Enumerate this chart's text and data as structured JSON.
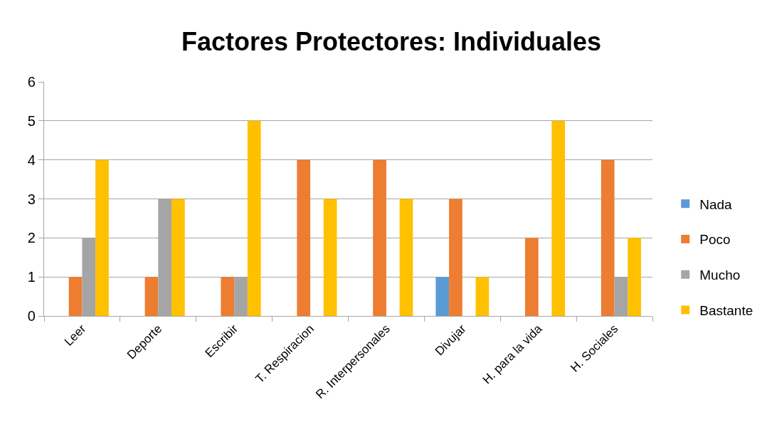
{
  "chart_data": {
    "type": "bar",
    "title": "Factores Protectores: Individuales",
    "categories": [
      "Leer",
      "Deporte",
      "Escribir",
      "T. Respiracion",
      "R. Interpersonales",
      "Divujar",
      "H. para la vida",
      "H. Sociales"
    ],
    "series": [
      {
        "name": "Nada",
        "color": "#5b9bd5",
        "values": [
          0,
          0,
          0,
          0,
          0,
          1,
          0,
          0
        ]
      },
      {
        "name": "Poco",
        "color": "#ed7d31",
        "values": [
          1,
          1,
          1,
          4,
          4,
          3,
          2,
          4
        ]
      },
      {
        "name": "Mucho",
        "color": "#a5a5a5",
        "values": [
          2,
          3,
          1,
          0,
          0,
          0,
          0,
          1
        ]
      },
      {
        "name": "Bastante",
        "color": "#ffc000",
        "values": [
          4,
          3,
          5,
          3,
          3,
          1,
          5,
          2
        ]
      }
    ],
    "ylim": [
      0,
      6
    ],
    "yticks": [
      0,
      1,
      2,
      3,
      4,
      5,
      6
    ],
    "grid": "y",
    "legend": "right"
  }
}
